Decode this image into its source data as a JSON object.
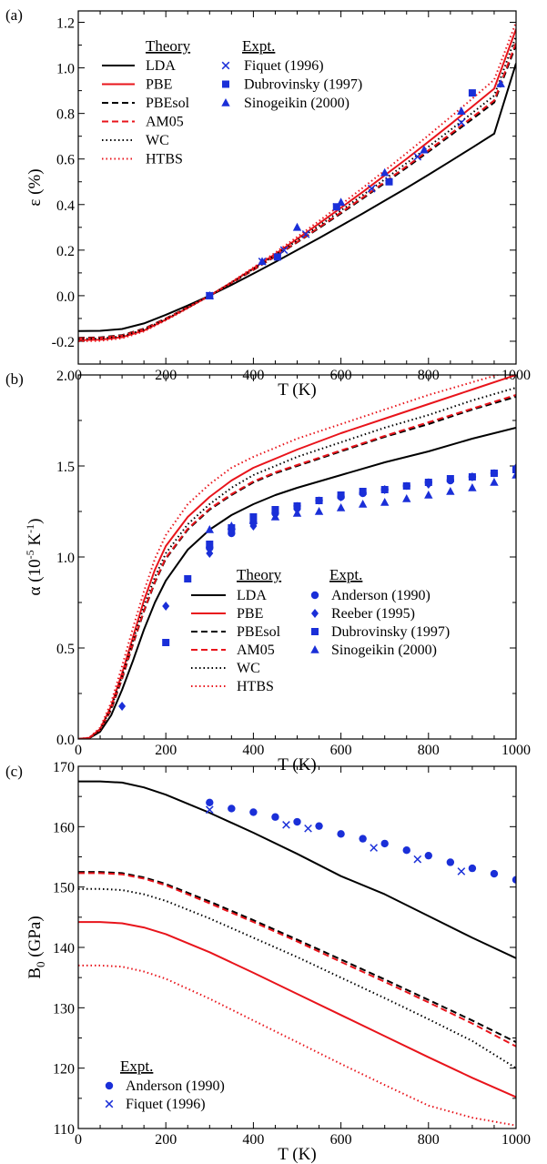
{
  "colors": {
    "black": "#000000",
    "red": "#e8141b",
    "blue": "#1a2fd8"
  },
  "chart_data": [
    {
      "type": "line",
      "panel_label": "(a)",
      "xlabel": "T (K)",
      "ylabel": "ε (%)",
      "xlim": [
        0,
        1000
      ],
      "ylim": [
        -0.3,
        1.25
      ],
      "xticks": [
        0,
        200,
        400,
        600,
        800,
        1000
      ],
      "yticks": [
        -0.2,
        0.0,
        0.2,
        0.4,
        0.6,
        0.8,
        1.0,
        1.2
      ],
      "ytick_labels": [
        "-0.2",
        "0.0",
        "0.2",
        "0.4",
        "0.6",
        "0.8",
        "1.0",
        "1.2"
      ],
      "legend": {
        "theory_title": "Theory",
        "expt_title": "Expt.",
        "theory": [
          "LDA",
          "PBE",
          "PBEsol",
          "AM05",
          "WC",
          "HTBS"
        ],
        "expt": [
          "Fiquet (1996)",
          "Dubrovinsky (1997)",
          "Sinogeikin (2000)"
        ]
      },
      "theory_x": [
        0,
        50,
        100,
        150,
        200,
        250,
        300,
        350,
        400,
        450,
        500,
        550,
        600,
        650,
        700,
        750,
        800,
        850,
        900,
        950,
        1000
      ],
      "series": [
        {
          "name": "LDA",
          "style": "solid",
          "color": "black",
          "values": [
            -0.155,
            -0.154,
            -0.146,
            -0.122,
            -0.084,
            -0.043,
            0.0,
            0.047,
            0.097,
            0.148,
            0.2,
            0.253,
            0.307,
            0.361,
            0.417,
            0.473,
            0.531,
            0.59,
            0.65,
            0.711,
            1.02
          ]
        },
        {
          "name": "PBE",
          "style": "solid",
          "color": "red",
          "values": [
            -0.195,
            -0.193,
            -0.182,
            -0.153,
            -0.105,
            -0.053,
            0.0,
            0.058,
            0.12,
            0.183,
            0.249,
            0.317,
            0.386,
            0.456,
            0.528,
            0.601,
            0.676,
            0.752,
            0.83,
            0.909,
            1.17
          ]
        },
        {
          "name": "PBEsol",
          "style": "dashed",
          "color": "black",
          "values": [
            -0.185,
            -0.183,
            -0.173,
            -0.145,
            -0.1,
            -0.051,
            0.0,
            0.055,
            0.113,
            0.172,
            0.234,
            0.297,
            0.361,
            0.427,
            0.494,
            0.562,
            0.632,
            0.703,
            0.775,
            0.848,
            1.1
          ]
        },
        {
          "name": "AM05",
          "style": "dashed",
          "color": "red",
          "values": [
            -0.187,
            -0.185,
            -0.175,
            -0.147,
            -0.101,
            -0.051,
            0.0,
            0.056,
            0.114,
            0.174,
            0.236,
            0.3,
            0.365,
            0.431,
            0.499,
            0.568,
            0.638,
            0.71,
            0.783,
            0.857,
            1.11
          ]
        },
        {
          "name": "WC",
          "style": "dotted",
          "color": "black",
          "values": [
            -0.19,
            -0.188,
            -0.178,
            -0.149,
            -0.103,
            -0.052,
            0.0,
            0.057,
            0.117,
            0.178,
            0.242,
            0.307,
            0.374,
            0.442,
            0.511,
            0.582,
            0.654,
            0.727,
            0.802,
            0.878,
            1.14
          ]
        },
        {
          "name": "HTBS",
          "style": "dotted",
          "color": "red",
          "values": [
            -0.2,
            -0.198,
            -0.187,
            -0.157,
            -0.108,
            -0.055,
            0.0,
            0.06,
            0.124,
            0.189,
            0.258,
            0.328,
            0.4,
            0.474,
            0.549,
            0.626,
            0.704,
            0.784,
            0.865,
            0.948,
            1.2
          ]
        }
      ],
      "expt": [
        {
          "name": "Fiquet (1996)",
          "marker": "x",
          "color": "blue",
          "x": [
            300,
            420,
            470,
            520,
            590,
            670,
            775,
            875
          ],
          "y": [
            0.0,
            0.15,
            0.2,
            0.27,
            0.39,
            0.47,
            0.61,
            0.76
          ]
        },
        {
          "name": "Dubrovinsky (1997)",
          "marker": "square",
          "color": "blue",
          "x": [
            300,
            455,
            590,
            710,
            900
          ],
          "y": [
            0.0,
            0.17,
            0.39,
            0.5,
            0.89
          ]
        },
        {
          "name": "Sinogeikin (2000)",
          "marker": "triangle",
          "color": "blue",
          "x": [
            300,
            420,
            500,
            600,
            700,
            790,
            875,
            965
          ],
          "y": [
            0.0,
            0.15,
            0.3,
            0.41,
            0.54,
            0.64,
            0.81,
            0.93
          ]
        }
      ]
    },
    {
      "type": "line",
      "panel_label": "(b)",
      "xlabel": "T (K)",
      "ylabel": "α (10",
      "ylabel_sup1": "-5",
      "ylabel_mid": " K",
      "ylabel_sup2": "-1",
      "ylabel_end": ")",
      "xlim": [
        0,
        1000
      ],
      "ylim": [
        0,
        2.0
      ],
      "xticks": [
        0,
        200,
        400,
        600,
        800,
        1000
      ],
      "yticks": [
        0.0,
        0.5,
        1.0,
        1.5,
        2.0
      ],
      "ytick_labels": [
        "0.0",
        "0.5",
        "1.0",
        "1.5",
        "2.0"
      ],
      "legend": {
        "theory_title": "Theory",
        "expt_title": "Expt.",
        "theory": [
          "LDA",
          "PBE",
          "PBEsol",
          "AM05",
          "WC",
          "HTBS"
        ],
        "expt": [
          "Anderson (1990)",
          "Reeber (1995)",
          "Dubrovinsky (1997)",
          "Sinogeikin (2000)"
        ]
      },
      "theory_x": [
        0,
        25,
        50,
        75,
        100,
        125,
        150,
        175,
        200,
        250,
        300,
        350,
        400,
        450,
        500,
        600,
        700,
        800,
        900,
        1000
      ],
      "series": [
        {
          "name": "LDA",
          "style": "solid",
          "color": "black",
          "values": [
            0.0,
            0.004,
            0.04,
            0.13,
            0.27,
            0.43,
            0.6,
            0.75,
            0.87,
            1.04,
            1.15,
            1.23,
            1.29,
            1.34,
            1.38,
            1.45,
            1.52,
            1.58,
            1.65,
            1.71
          ]
        },
        {
          "name": "PBE",
          "style": "solid",
          "color": "red",
          "values": [
            0.0,
            0.006,
            0.055,
            0.18,
            0.36,
            0.56,
            0.76,
            0.93,
            1.06,
            1.22,
            1.33,
            1.42,
            1.49,
            1.54,
            1.59,
            1.68,
            1.76,
            1.84,
            1.92,
            2.0
          ]
        },
        {
          "name": "PBEsol",
          "style": "dashed",
          "color": "black",
          "values": [
            0.0,
            0.005,
            0.05,
            0.16,
            0.33,
            0.52,
            0.7,
            0.86,
            0.99,
            1.15,
            1.26,
            1.34,
            1.41,
            1.46,
            1.5,
            1.58,
            1.66,
            1.73,
            1.81,
            1.88
          ]
        },
        {
          "name": "AM05",
          "style": "dashed",
          "color": "red",
          "values": [
            0.0,
            0.005,
            0.05,
            0.165,
            0.335,
            0.525,
            0.705,
            0.865,
            0.995,
            1.155,
            1.265,
            1.345,
            1.415,
            1.465,
            1.505,
            1.585,
            1.665,
            1.74,
            1.815,
            1.89
          ]
        },
        {
          "name": "WC",
          "style": "dotted",
          "color": "black",
          "values": [
            0.0,
            0.006,
            0.052,
            0.17,
            0.345,
            0.54,
            0.73,
            0.89,
            1.02,
            1.18,
            1.29,
            1.38,
            1.45,
            1.5,
            1.55,
            1.63,
            1.71,
            1.78,
            1.86,
            1.93
          ]
        },
        {
          "name": "HTBS",
          "style": "dotted",
          "color": "red",
          "values": [
            0.0,
            0.007,
            0.062,
            0.2,
            0.4,
            0.61,
            0.81,
            0.99,
            1.12,
            1.29,
            1.4,
            1.49,
            1.55,
            1.6,
            1.65,
            1.73,
            1.81,
            1.89,
            1.96,
            2.03
          ]
        }
      ],
      "expt": [
        {
          "name": "Anderson (1990)",
          "marker": "circle",
          "color": "blue",
          "x": [
            300,
            350,
            400,
            450,
            500,
            550,
            600,
            650,
            700,
            750,
            800,
            850,
            900,
            950,
            1000
          ],
          "y": [
            1.05,
            1.13,
            1.19,
            1.24,
            1.28,
            1.31,
            1.33,
            1.35,
            1.37,
            1.39,
            1.41,
            1.42,
            1.44,
            1.46,
            1.48
          ]
        },
        {
          "name": "Reeber (1995)",
          "marker": "diamond",
          "color": "blue",
          "x": [
            100,
            200,
            300,
            400,
            500,
            600,
            700,
            800,
            900,
            1000
          ],
          "y": [
            0.18,
            0.73,
            1.02,
            1.17,
            1.26,
            1.33,
            1.37,
            1.4,
            1.44,
            1.49
          ]
        },
        {
          "name": "Dubrovinsky (1997)",
          "marker": "square",
          "color": "blue",
          "x": [
            200,
            250,
            300,
            350,
            400,
            450,
            500,
            550,
            600,
            650,
            700,
            750,
            800,
            850,
            900,
            950,
            1000
          ],
          "y": [
            0.53,
            0.88,
            1.07,
            1.16,
            1.22,
            1.26,
            1.28,
            1.31,
            1.34,
            1.36,
            1.37,
            1.39,
            1.41,
            1.43,
            1.44,
            1.46,
            1.48
          ]
        },
        {
          "name": "Sinogeikin (2000)",
          "marker": "triangle",
          "color": "blue",
          "x": [
            300,
            350,
            400,
            450,
            500,
            550,
            600,
            650,
            700,
            750,
            800,
            850,
            900,
            950,
            1000
          ],
          "y": [
            1.15,
            1.17,
            1.2,
            1.22,
            1.24,
            1.25,
            1.27,
            1.29,
            1.3,
            1.32,
            1.34,
            1.36,
            1.38,
            1.41,
            1.45
          ]
        }
      ]
    },
    {
      "type": "line",
      "panel_label": "(c)",
      "xlabel": "T (K)",
      "ylabel": "B",
      "ylabel_sub": "0",
      "ylabel_end": " (GPa)",
      "xlim": [
        0,
        1000
      ],
      "ylim": [
        110,
        170
      ],
      "xticks": [
        0,
        200,
        400,
        600,
        800,
        1000
      ],
      "yticks": [
        110,
        120,
        130,
        140,
        150,
        160,
        170
      ],
      "ytick_labels": [
        "110",
        "120",
        "130",
        "140",
        "150",
        "160",
        "170"
      ],
      "legend": {
        "expt_title": "Expt.",
        "expt": [
          "Anderson (1990)",
          "Fiquet (1996)"
        ]
      },
      "theory_x": [
        0,
        50,
        100,
        150,
        200,
        300,
        400,
        500,
        600,
        700,
        800,
        900,
        1000
      ],
      "series": [
        {
          "name": "LDA",
          "style": "solid",
          "color": "black",
          "values": [
            167.5,
            167.5,
            167.3,
            166.5,
            165.3,
            162.3,
            159.0,
            155.5,
            151.8,
            148.8,
            145.2,
            141.6,
            138.2
          ]
        },
        {
          "name": "PBEsol",
          "style": "dashed",
          "color": "black",
          "values": [
            152.5,
            152.5,
            152.3,
            151.6,
            150.5,
            147.6,
            144.5,
            141.3,
            138.0,
            134.7,
            131.3,
            127.9,
            124.3
          ]
        },
        {
          "name": "AM05",
          "style": "dashed",
          "color": "red",
          "values": [
            152.3,
            152.3,
            152.1,
            151.4,
            150.3,
            147.3,
            144.2,
            141.0,
            137.6,
            134.3,
            130.9,
            127.4,
            123.6
          ]
        },
        {
          "name": "WC",
          "style": "dotted",
          "color": "black",
          "values": [
            149.7,
            149.7,
            149.5,
            148.8,
            147.7,
            144.8,
            141.6,
            138.4,
            135.0,
            131.6,
            128.1,
            124.5,
            120.0
          ]
        },
        {
          "name": "PBE",
          "style": "solid",
          "color": "red",
          "values": [
            144.2,
            144.2,
            144.0,
            143.3,
            142.2,
            139.2,
            135.8,
            132.3,
            128.8,
            125.3,
            121.8,
            118.4,
            115.2
          ]
        },
        {
          "name": "HTBS",
          "style": "dotted",
          "color": "red",
          "values": [
            137.0,
            137.0,
            136.8,
            136.0,
            134.8,
            131.5,
            127.9,
            124.3,
            120.7,
            117.2,
            113.8,
            111.8,
            110.5
          ]
        }
      ],
      "expt": [
        {
          "name": "Anderson (1990)",
          "marker": "circle",
          "color": "blue",
          "x": [
            300,
            350,
            400,
            450,
            500,
            550,
            600,
            650,
            700,
            750,
            800,
            850,
            900,
            950,
            1000
          ],
          "y": [
            164.0,
            163.0,
            162.4,
            161.6,
            160.8,
            160.1,
            158.8,
            158.0,
            157.2,
            156.1,
            155.2,
            154.1,
            153.1,
            152.2,
            151.2
          ]
        },
        {
          "name": "Fiquet (1996)",
          "marker": "x",
          "color": "blue",
          "x": [
            300,
            475,
            525,
            675,
            775,
            875
          ],
          "y": [
            162.8,
            160.3,
            159.7,
            156.5,
            154.6,
            152.6
          ]
        }
      ]
    }
  ]
}
